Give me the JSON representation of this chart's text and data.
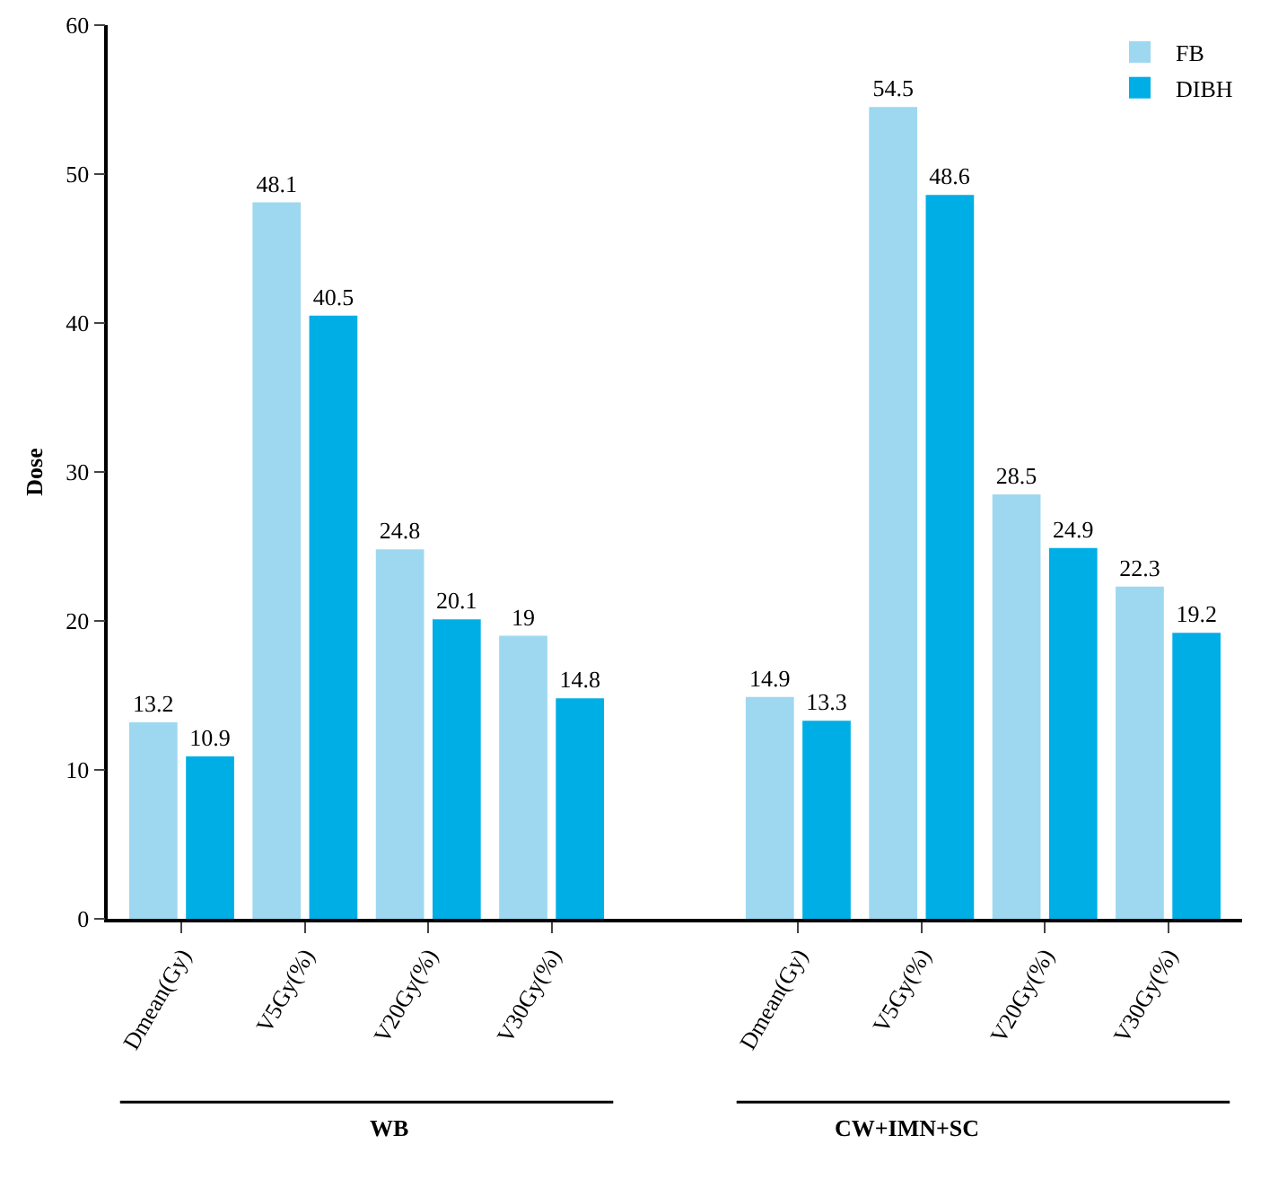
{
  "chart_data": {
    "type": "bar",
    "ylabel": "Dose",
    "categories": [
      "Dmean(Gy)",
      "V5Gy(%)",
      "V20Gy(%)",
      "V30Gy(%)",
      null,
      "Dmean(Gy)",
      "V5Gy(%)",
      "V20Gy(%)",
      "V30Gy(%)"
    ],
    "series": [
      {
        "name": "FB",
        "color": "#9dd8f0",
        "values": [
          13.2,
          48.1,
          24.8,
          19,
          null,
          14.9,
          54.5,
          28.5,
          22.3
        ]
      },
      {
        "name": "DIBH",
        "color": "#00aee6",
        "values": [
          10.9,
          40.5,
          20.1,
          14.8,
          null,
          13.3,
          48.6,
          24.9,
          19.2
        ]
      }
    ],
    "ylim": [
      0,
      60
    ],
    "yticks": [
      0,
      10,
      20,
      30,
      40,
      50,
      60
    ],
    "data_labels": true,
    "grid": false,
    "legend": "top right",
    "annotations": [
      "WB",
      "CW+IMN+SC"
    ]
  }
}
